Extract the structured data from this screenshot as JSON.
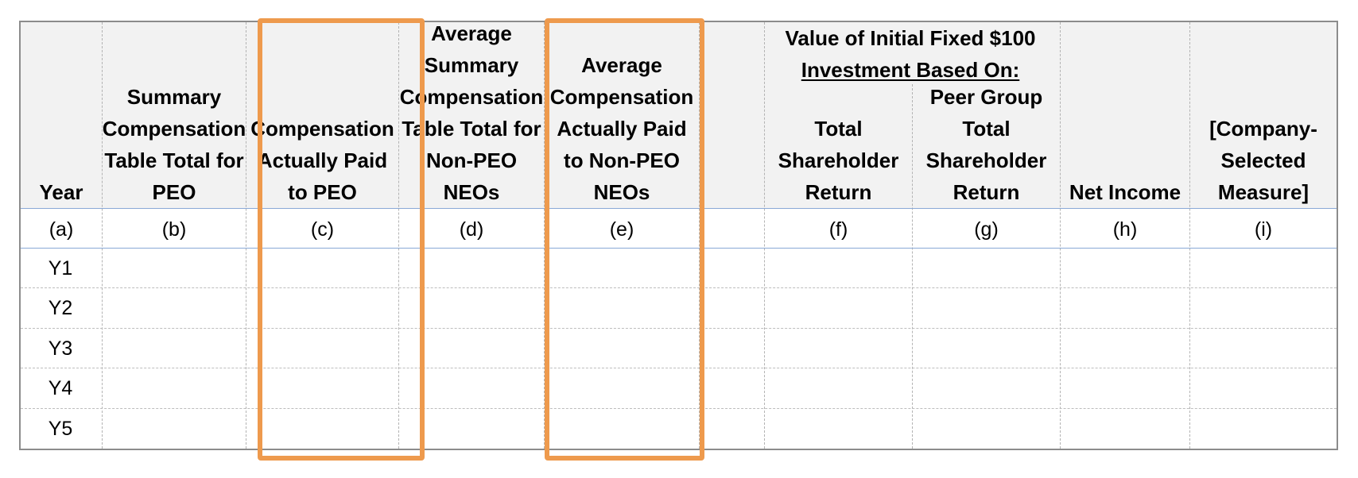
{
  "table": {
    "headers": {
      "a": "Year",
      "b": "Summary Compensation Table Total for PEO",
      "c": "Compensation Actually Paid to PEO",
      "d": "Average Summary Compensation Table Total for Non-PEO NEOs",
      "e": "Average Compensation Actually Paid to Non-PEO NEOs",
      "f": "Total Shareholder Return",
      "g": "Peer Group Total Shareholder Return",
      "h": "Net Income",
      "i": "[Company-Selected Measure]"
    },
    "group_header_line1": "Value of Initial Fixed $100",
    "group_header_line2": "Investment Based On:",
    "header_lines": {
      "a": [
        "Year"
      ],
      "b": [
        "Summary",
        "Compensation",
        "Table Total for",
        "PEO"
      ],
      "c": [
        "Compensation",
        "Actually Paid",
        "to PEO"
      ],
      "d": [
        "Average",
        "Summary",
        "Compensation",
        "Table Total for",
        "Non-PEO NEOs"
      ],
      "e": [
        "Average",
        "Compensation",
        "Actually Paid",
        "to Non-PEO",
        "NEOs"
      ],
      "f": [
        "Total",
        "Shareholder",
        "Return"
      ],
      "g": [
        "Peer Group",
        "Total",
        "Shareholder",
        "Return"
      ],
      "h": [
        "Net Income"
      ],
      "i": [
        "[Company-",
        "Selected",
        "Measure]"
      ]
    },
    "column_letters": [
      "(a)",
      "(b)",
      "(c)",
      "(d)",
      "(e)",
      "(f)",
      "(g)",
      "(h)",
      "(i)"
    ],
    "rows": [
      "Y1",
      "Y2",
      "Y3",
      "Y4",
      "Y5"
    ]
  },
  "highlight_color": "#ee9a4d"
}
